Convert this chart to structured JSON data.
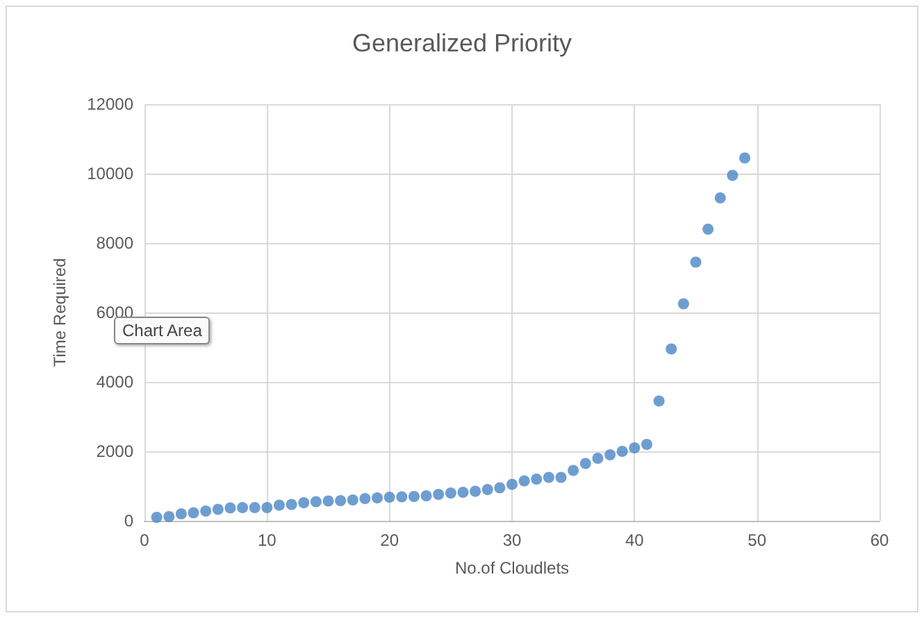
{
  "chart_data": {
    "type": "scatter",
    "title": "Generalized Priority",
    "xlabel": "No.of Cloudlets",
    "ylabel": "Time Required",
    "annotations": [
      "Chart Area"
    ],
    "x": [
      1,
      2,
      3,
      4,
      5,
      6,
      7,
      8,
      9,
      10,
      11,
      12,
      13,
      14,
      15,
      16,
      17,
      18,
      19,
      20,
      21,
      22,
      23,
      24,
      25,
      26,
      27,
      28,
      29,
      30,
      31,
      32,
      33,
      34,
      35,
      36,
      37,
      38,
      39,
      40,
      41,
      42,
      43,
      44,
      45,
      46,
      47,
      48,
      49
    ],
    "series": [
      {
        "color": "#4a86c5",
        "values": [
          100,
          120,
          200,
          230,
          280,
          330,
          370,
          380,
          380,
          380,
          450,
          470,
          520,
          550,
          570,
          580,
          600,
          640,
          660,
          680,
          690,
          700,
          720,
          760,
          800,
          820,
          850,
          900,
          950,
          1050,
          1150,
          1200,
          1250,
          1250,
          1450,
          1650,
          1800,
          1900,
          2000,
          2100,
          2200,
          3450,
          4950,
          6250,
          7450,
          8400,
          9300,
          9950,
          10450
        ]
      }
    ],
    "xlim": [
      0,
      60
    ],
    "xticks": [
      0,
      10,
      20,
      30,
      40,
      50,
      60
    ],
    "ylim": [
      0,
      12000
    ],
    "yticks": [
      0,
      2000,
      4000,
      6000,
      8000,
      10000,
      12000
    ],
    "grid": true,
    "marker": "circle"
  }
}
